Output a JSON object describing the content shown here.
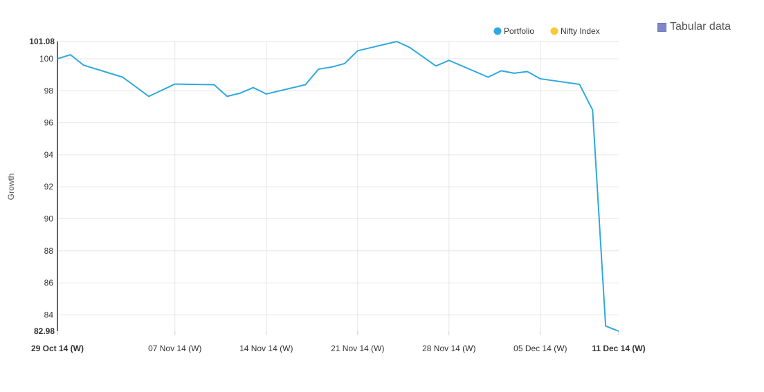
{
  "chart_data": {
    "type": "line",
    "ylabel": "Growth",
    "ylim": [
      82.98,
      101.08
    ],
    "yticks": [
      84,
      86,
      88,
      90,
      92,
      94,
      96,
      98,
      100
    ],
    "ytick_min_label": "82.98",
    "ytick_max_label": "101.08",
    "xlim": [
      "2014-10-29",
      "2014-12-11"
    ],
    "xticks": [
      {
        "date": "2014-10-29",
        "label": "29 Oct 14 (W)",
        "bold": true
      },
      {
        "date": "2014-11-07",
        "label": "07 Nov 14 (W)",
        "bold": false
      },
      {
        "date": "2014-11-14",
        "label": "14 Nov 14 (W)",
        "bold": false
      },
      {
        "date": "2014-11-21",
        "label": "21 Nov 14 (W)",
        "bold": false
      },
      {
        "date": "2014-11-28",
        "label": "28 Nov 14 (W)",
        "bold": false
      },
      {
        "date": "2014-12-05",
        "label": "05 Dec 14 (W)",
        "bold": false
      },
      {
        "date": "2014-12-11",
        "label": "11 Dec 14 (W)",
        "bold": true
      }
    ],
    "legend_position": "top-right",
    "series": [
      {
        "name": "Portfolio",
        "color": "#2ea8e0",
        "points": [
          [
            "2014-10-29",
            100.0
          ],
          [
            "2014-10-30",
            100.25
          ],
          [
            "2014-10-31",
            99.6
          ],
          [
            "2014-11-03",
            98.85
          ],
          [
            "2014-11-05",
            97.65
          ],
          [
            "2014-11-07",
            98.42
          ],
          [
            "2014-11-10",
            98.38
          ],
          [
            "2014-11-11",
            97.65
          ],
          [
            "2014-11-12",
            97.85
          ],
          [
            "2014-11-13",
            98.2
          ],
          [
            "2014-11-14",
            97.8
          ],
          [
            "2014-11-17",
            98.38
          ],
          [
            "2014-11-18",
            99.35
          ],
          [
            "2014-11-19",
            99.48
          ],
          [
            "2014-11-20",
            99.7
          ],
          [
            "2014-11-21",
            100.5
          ],
          [
            "2014-11-24",
            101.08
          ],
          [
            "2014-11-25",
            100.7
          ],
          [
            "2014-11-27",
            99.55
          ],
          [
            "2014-11-28",
            99.9
          ],
          [
            "2014-12-01",
            98.85
          ],
          [
            "2014-12-02",
            99.25
          ],
          [
            "2014-12-03",
            99.1
          ],
          [
            "2014-12-04",
            99.2
          ],
          [
            "2014-12-05",
            98.75
          ],
          [
            "2014-12-08",
            98.4
          ],
          [
            "2014-12-09",
            96.8
          ],
          [
            "2014-12-10",
            83.3
          ],
          [
            "2014-12-11",
            82.98
          ]
        ]
      },
      {
        "name": "Nifty Index",
        "color": "#f7c934",
        "points": []
      }
    ]
  },
  "tabular_label": "Tabular data",
  "tabular_color": "#7f86c9"
}
